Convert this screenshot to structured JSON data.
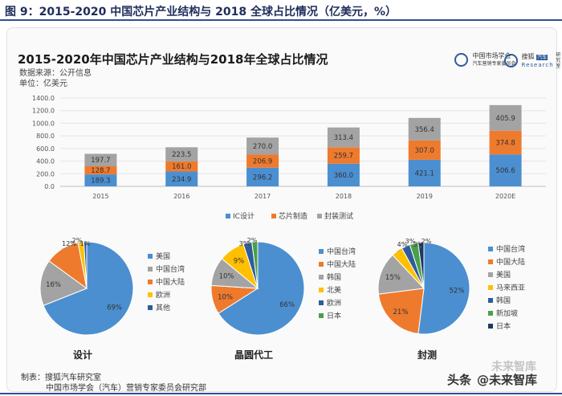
{
  "header": {
    "figure_title": "图 9：2015-2020 中国芯片产业结构与 2018 全球占比情况（亿美元，%）"
  },
  "panel": {
    "title": "2015-2020年中国芯片产业结构与2018年全球占比情况",
    "source": "数据来源：公开信息",
    "unit": "单位：亿美元",
    "logo1_line1": "中国市场学会",
    "logo1_line2": "汽车营销专家委员会",
    "logo2_text": "搜狐",
    "logo2_sub": "Research",
    "logo2_tag": "汽车",
    "logo2_side": "研究室"
  },
  "footer": {
    "line1": "制表：搜狐汽车研究室",
    "line2": "中国市场学会（汽车）营销专家委员会研究部"
  },
  "watermark": {
    "text1": "头条",
    "text2": "@未来智库",
    "faint": "未来智库"
  },
  "colors": {
    "ic": "#4b8fd0",
    "mfg": "#ee7a2e",
    "pkg": "#a3a3a3",
    "yellow": "#ffc000",
    "darkblue": "#2e5d9c",
    "green": "#4aa04a",
    "navy": "#1f3864"
  },
  "chart_data": [
    {
      "type": "bar",
      "stacked": true,
      "categories": [
        "2015",
        "2016",
        "2017",
        "2018",
        "2019",
        "2020E"
      ],
      "series": [
        {
          "name": "IC设计",
          "color": "#4b8fd0",
          "values": [
            189.3,
            234.9,
            296.2,
            360.0,
            421.1,
            506.6
          ],
          "labels": [
            "189.3",
            "234.9",
            "296.2",
            "360.0",
            "421.1",
            "506.6"
          ]
        },
        {
          "name": "芯片制造",
          "color": "#ee7a2e",
          "values": [
            128.7,
            161.0,
            206.9,
            259.7,
            307.0,
            374.8
          ],
          "labels": [
            "128.7",
            "161.0",
            "206.9",
            "259.7",
            "307.0",
            "374.8"
          ]
        },
        {
          "name": "封装测试",
          "color": "#a3a3a3",
          "values": [
            197.7,
            223.5,
            270.0,
            313.4,
            356.4,
            405.9
          ],
          "labels": [
            "197.7",
            "223.5",
            "270.0",
            "313.4",
            "356.4",
            "405.9"
          ]
        }
      ],
      "yticks": [
        "0.0",
        "200.0",
        "400.0",
        "600.0",
        "800.0",
        "1000.0",
        "1200.0",
        "1400.0"
      ],
      "ylim": [
        0,
        1400
      ],
      "legend": "bottom"
    },
    {
      "type": "pie",
      "title": "设计",
      "slices": [
        {
          "name": "美国",
          "value": 69,
          "label": "69%",
          "color": "#4b8fd0"
        },
        {
          "name": "中国台湾",
          "value": 16,
          "label": "16%",
          "color": "#a3a3a3"
        },
        {
          "name": "中国大陆",
          "value": 12,
          "label": "12%",
          "color": "#ee7a2e"
        },
        {
          "name": "欧洲",
          "value": 2,
          "label": "2%",
          "color": "#ffc000"
        },
        {
          "name": "其他",
          "value": 1,
          "label": "1%",
          "color": "#2e5d9c"
        }
      ]
    },
    {
      "type": "pie",
      "title": "晶圆代工",
      "slices": [
        {
          "name": "中国台湾",
          "value": 66,
          "label": "66%",
          "color": "#4b8fd0"
        },
        {
          "name": "中国大陆",
          "value": 10,
          "label": "10%",
          "color": "#ee7a2e"
        },
        {
          "name": "韩国",
          "value": 10,
          "label": "10%",
          "color": "#a3a3a3"
        },
        {
          "name": "北美",
          "value": 9,
          "label": "9%",
          "color": "#ffc000"
        },
        {
          "name": "欧洲",
          "value": 3,
          "label": "3%",
          "color": "#2e5d9c"
        },
        {
          "name": "日本",
          "value": 2,
          "label": "2%",
          "color": "#4aa04a"
        }
      ]
    },
    {
      "type": "pie",
      "title": "封测",
      "slices": [
        {
          "name": "中国台湾",
          "value": 52,
          "label": "52%",
          "color": "#4b8fd0"
        },
        {
          "name": "中国大陆",
          "value": 21,
          "label": "21%",
          "color": "#ee7a2e"
        },
        {
          "name": "美国",
          "value": 15,
          "label": "15%",
          "color": "#a3a3a3"
        },
        {
          "name": "马来西亚",
          "value": 4,
          "label": "4%",
          "color": "#ffc000"
        },
        {
          "name": "韩国",
          "value": 3,
          "label": "3%",
          "color": "#2e5d9c"
        },
        {
          "name": "新加坡",
          "value": 3,
          "label": "3%",
          "color": "#4aa04a"
        },
        {
          "name": "日本",
          "value": 2,
          "label": "2%",
          "color": "#1f3864"
        }
      ]
    }
  ]
}
